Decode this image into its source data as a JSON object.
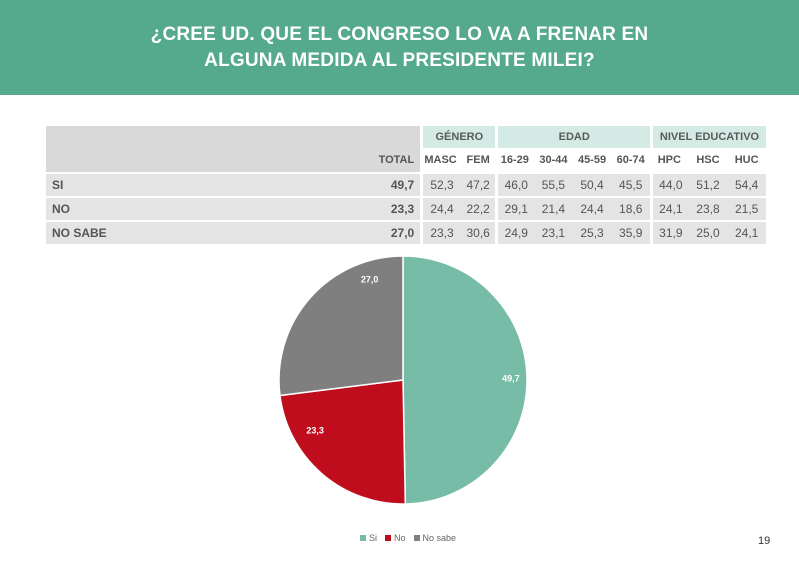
{
  "header": {
    "line1": "¿CREE UD. QUE EL CONGRESO LO VA A FRENAR EN",
    "line2": "ALGUNA MEDIDA AL PRESIDENTE MILEI?"
  },
  "table": {
    "groups": {
      "genero": "GÉNERO",
      "edad": "EDAD",
      "nivel": "NIVEL EDUCATIVO"
    },
    "columns": {
      "total": "TOTAL",
      "masc": "MASC",
      "fem": "FEM",
      "e1": "16-29",
      "e2": "30-44",
      "e3": "45-59",
      "e4": "60-74",
      "hpc": "HPC",
      "hsc": "HSC",
      "huc": "HUC"
    },
    "rows": [
      {
        "label": "SI",
        "total": "49,7",
        "masc": "52,3",
        "fem": "47,2",
        "e1": "46,0",
        "e2": "55,5",
        "e3": "50,4",
        "e4": "45,5",
        "hpc": "44,0",
        "hsc": "51,2",
        "huc": "54,4"
      },
      {
        "label": "NO",
        "total": "23,3",
        "masc": "24,4",
        "fem": "22,2",
        "e1": "29,1",
        "e2": "21,4",
        "e3": "24,4",
        "e4": "18,6",
        "hpc": "24,1",
        "hsc": "23,8",
        "huc": "21,5"
      },
      {
        "label": "NO SABE",
        "total": "27,0",
        "masc": "23,3",
        "fem": "30,6",
        "e1": "24,9",
        "e2": "23,1",
        "e3": "25,3",
        "e4": "35,9",
        "hpc": "31,9",
        "hsc": "25,0",
        "huc": "24,1"
      }
    ]
  },
  "chart_data": {
    "type": "pie",
    "categories": [
      "Si",
      "No",
      "No sabe"
    ],
    "values": [
      49.7,
      23.3,
      27.0
    ],
    "labels": [
      "49,7",
      "23,3",
      "27,0"
    ],
    "colors": [
      "#76bca6",
      "#c00d1e",
      "#7f7f7f"
    ],
    "legend": "bottom"
  },
  "page_number": "19"
}
